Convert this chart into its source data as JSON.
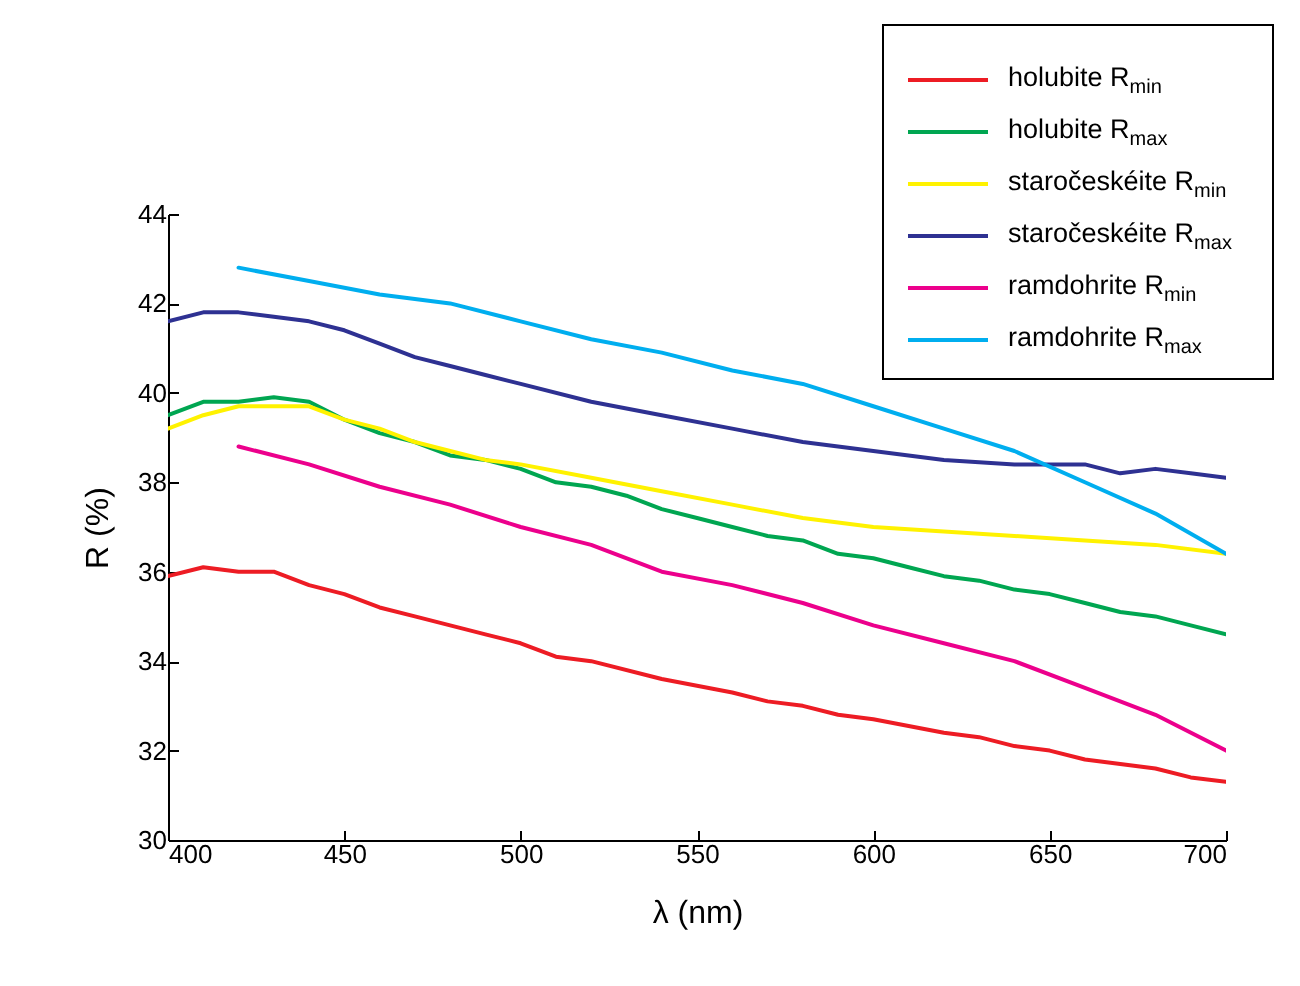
{
  "chart_data": {
    "type": "line",
    "xlabel": "λ (nm)",
    "ylabel": "R (%)",
    "xlim": [
      400,
      700
    ],
    "ylim": [
      30,
      44
    ],
    "xticks": [
      400,
      450,
      500,
      550,
      600,
      650,
      700
    ],
    "yticks": [
      30,
      32,
      34,
      36,
      38,
      40,
      42,
      44
    ],
    "legend": "top right",
    "series": [
      {
        "name": "holubite R$_{min}$",
        "color": "#ed1c24",
        "x": [
          400,
          410,
          420,
          430,
          440,
          450,
          460,
          470,
          480,
          490,
          500,
          510,
          520,
          540,
          560,
          570,
          580,
          590,
          600,
          620,
          630,
          640,
          650,
          660,
          680,
          690,
          700
        ],
        "values": [
          35.9,
          36.1,
          36.0,
          36.0,
          35.7,
          35.5,
          35.2,
          35.0,
          34.8,
          34.6,
          34.4,
          34.1,
          34.0,
          33.6,
          33.3,
          33.1,
          33.0,
          32.8,
          32.7,
          32.4,
          32.3,
          32.1,
          32.0,
          31.8,
          31.6,
          31.4,
          31.3
        ]
      },
      {
        "name": "holubite R$_{max}$",
        "color": "#00a651",
        "x": [
          400,
          410,
          420,
          430,
          440,
          450,
          460,
          470,
          480,
          490,
          500,
          510,
          520,
          530,
          540,
          550,
          560,
          570,
          580,
          590,
          600,
          610,
          620,
          630,
          640,
          650,
          660,
          670,
          680,
          690,
          700
        ],
        "values": [
          39.5,
          39.8,
          39.8,
          39.9,
          39.8,
          39.4,
          39.1,
          38.9,
          38.6,
          38.5,
          38.3,
          38.0,
          37.9,
          37.7,
          37.4,
          37.2,
          37.0,
          36.8,
          36.7,
          36.4,
          36.3,
          36.1,
          35.9,
          35.8,
          35.6,
          35.5,
          35.3,
          35.1,
          35.0,
          34.8,
          34.6
        ]
      },
      {
        "name": "staročeskéite R$_{min}$",
        "color": "#fff200",
        "x": [
          400,
          410,
          420,
          430,
          440,
          450,
          460,
          470,
          480,
          490,
          500,
          520,
          540,
          560,
          580,
          600,
          620,
          640,
          660,
          680,
          700
        ],
        "values": [
          39.2,
          39.5,
          39.7,
          39.7,
          39.7,
          39.4,
          39.2,
          38.9,
          38.7,
          38.5,
          38.4,
          38.1,
          37.8,
          37.5,
          37.2,
          37.0,
          36.9,
          36.8,
          36.7,
          36.6,
          36.4
        ]
      },
      {
        "name": "staročeskéite R$_{max}$",
        "color": "#2e3192",
        "x": [
          400,
          410,
          420,
          430,
          440,
          450,
          460,
          470,
          480,
          490,
          500,
          520,
          540,
          560,
          580,
          600,
          620,
          640,
          660,
          670,
          680,
          690,
          700
        ],
        "values": [
          41.6,
          41.8,
          41.8,
          41.7,
          41.6,
          41.4,
          41.1,
          40.8,
          40.6,
          40.4,
          40.2,
          39.8,
          39.5,
          39.2,
          38.9,
          38.7,
          38.5,
          38.4,
          38.4,
          38.2,
          38.3,
          38.2,
          38.1
        ]
      },
      {
        "name": "ramdohrite R$_{min}$",
        "color": "#ec008c",
        "x": [
          420,
          440,
          460,
          480,
          500,
          520,
          540,
          560,
          580,
          600,
          620,
          640,
          660,
          680,
          700
        ],
        "values": [
          38.8,
          38.4,
          37.9,
          37.5,
          37.0,
          36.6,
          36.0,
          35.7,
          35.3,
          34.8,
          34.4,
          34.0,
          33.4,
          32.8,
          32.0
        ]
      },
      {
        "name": "ramdohrite R$_{max}$",
        "color": "#00aeef",
        "x": [
          420,
          440,
          460,
          480,
          500,
          520,
          540,
          560,
          580,
          600,
          620,
          640,
          660,
          680,
          700
        ],
        "values": [
          42.8,
          42.5,
          42.2,
          42.0,
          41.6,
          41.2,
          40.9,
          40.5,
          40.2,
          39.7,
          39.2,
          38.7,
          38.0,
          37.3,
          36.4
        ]
      }
    ]
  }
}
